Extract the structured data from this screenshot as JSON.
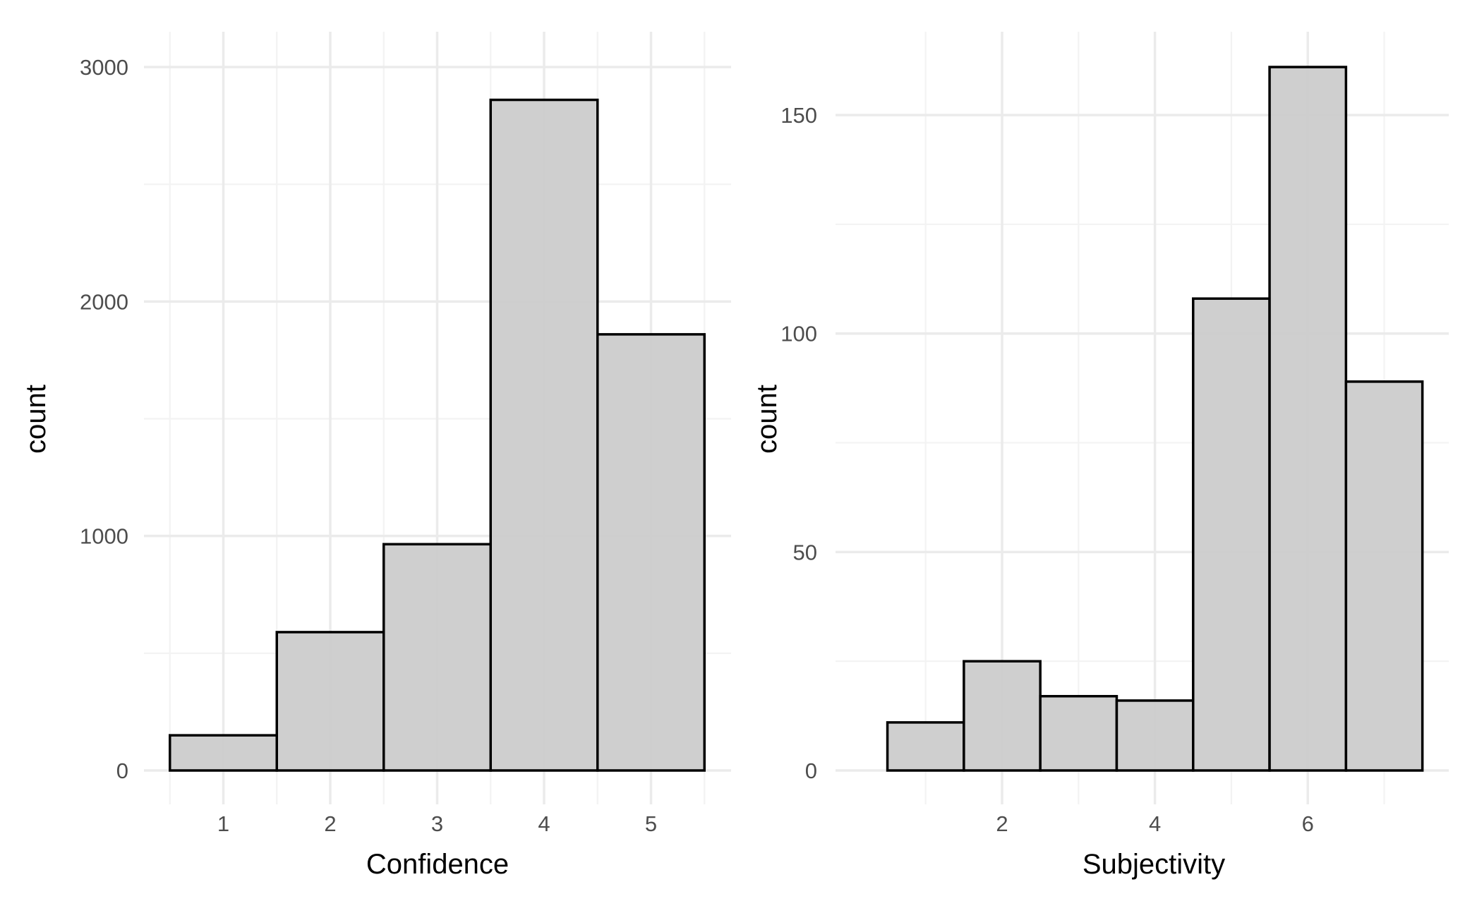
{
  "chart_data": [
    {
      "type": "bar",
      "subtype": "histogram",
      "xlabel": "Confidence",
      "ylabel": "count",
      "x_ticks": [
        "1",
        "2",
        "3",
        "4",
        "5"
      ],
      "y_ticks": [
        "0",
        "1000",
        "2000",
        "3000"
      ],
      "bins": [
        {
          "x": 1,
          "count": 150
        },
        {
          "x": 2,
          "count": 590
        },
        {
          "x": 3,
          "count": 965
        },
        {
          "x": 4,
          "count": 2860
        },
        {
          "x": 5,
          "count": 1860
        }
      ],
      "xlim": [
        0.5,
        5.5
      ],
      "ylim": [
        0,
        3000
      ],
      "bar_fill": "#cccccc",
      "bar_outline": "#000000",
      "grid": true
    },
    {
      "type": "bar",
      "subtype": "histogram",
      "xlabel": "Subjectivity",
      "ylabel": "count",
      "x_ticks": [
        "2",
        "4",
        "6"
      ],
      "y_ticks": [
        "0",
        "50",
        "100",
        "150"
      ],
      "bins": [
        {
          "x": 1,
          "count": 11
        },
        {
          "x": 2,
          "count": 25
        },
        {
          "x": 3,
          "count": 17
        },
        {
          "x": 4,
          "count": 16
        },
        {
          "x": 5,
          "count": 108
        },
        {
          "x": 6,
          "count": 161
        },
        {
          "x": 7,
          "count": 89
        }
      ],
      "xlim": [
        0.5,
        7.5
      ],
      "ylim": [
        0,
        161
      ],
      "bar_fill": "#cccccc",
      "bar_outline": "#000000",
      "grid": true
    }
  ]
}
